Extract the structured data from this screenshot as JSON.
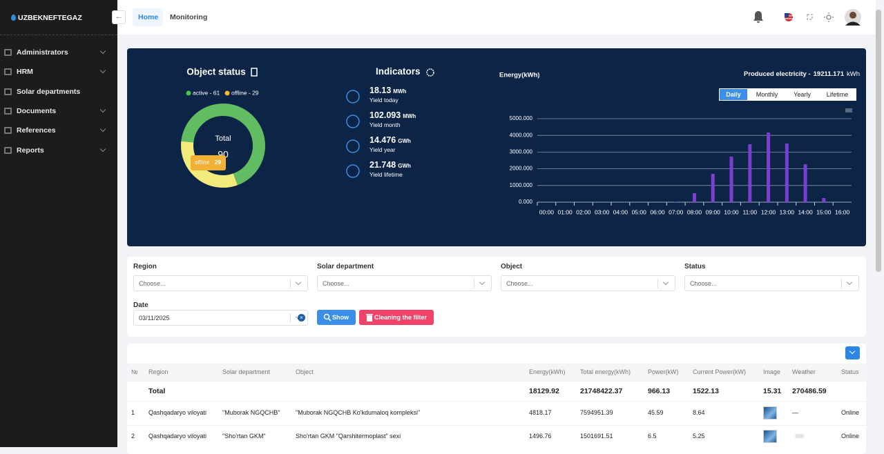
{
  "sidebar": {
    "logo": "UZBEKNEFTEGAZ",
    "menu": [
      "Administrators",
      "HRM",
      "Solar departments",
      "Documents",
      "References",
      "Reports"
    ]
  },
  "header": {
    "tabs": [
      "Home",
      "Monitoring"
    ]
  },
  "indicators": {
    "title": "Indicators",
    "items": [
      {
        "value": 18.13,
        "unit": "MWh",
        "label": "Yield today"
      },
      {
        "value": 102.093,
        "unit": "MWh",
        "label": "Yield month"
      },
      {
        "value": 14.476,
        "unit": "GWh",
        "label": "Yield year"
      },
      {
        "value": 21.748,
        "unit": "GWh",
        "label": "Yield lifetime"
      }
    ]
  },
  "produced": {
    "label": "Produced electricity -",
    "value": 19211.171,
    "unit": "kWh"
  },
  "periods": [
    "Daily",
    "Monthly",
    "Yearly",
    "Lifetime"
  ],
  "chart_data": [
    {
      "type": "donut",
      "title": "Object status",
      "categories": [
        "active",
        "offline"
      ],
      "values": [
        61,
        29
      ],
      "colors": [
        "#62bd62",
        "#f3ea7c"
      ],
      "legend_labels": [
        "active - 61",
        "offline - 29"
      ],
      "center_label": "Total",
      "center_value": 90
    },
    {
      "type": "bar",
      "title": "Energy(kWh)",
      "color": "#7a3fd0",
      "categories": [
        "00:00",
        "01:00",
        "02:00",
        "03:00",
        "04:00",
        "05:00",
        "06:00",
        "07:00",
        "08:00",
        "09:00",
        "10:00",
        "11:00",
        "12:00",
        "13:00",
        "14:00",
        "15:00",
        "16:00"
      ],
      "values": [
        0,
        0,
        0,
        0,
        0,
        0,
        0,
        30,
        540,
        1700,
        2730,
        3470,
        4170,
        3510,
        2270,
        250,
        0
      ],
      "ylim": [
        0,
        5000
      ],
      "yticks": [
        {
          "value": 0,
          "label": "0.000"
        },
        {
          "value": 1000,
          "label": "1000.000"
        },
        {
          "value": 2000,
          "label": "2000.000"
        },
        {
          "value": 3000,
          "label": "3000.000"
        },
        {
          "value": 4000,
          "label": "4000.000"
        },
        {
          "value": 5000,
          "label": "5000.000"
        }
      ],
      "grid": true
    }
  ],
  "filters": {
    "fields": [
      {
        "label": "Region",
        "placeholder": "Choose..."
      },
      {
        "label": "Solar department",
        "placeholder": "Choose..."
      },
      {
        "label": "Object",
        "placeholder": "Choose..."
      },
      {
        "label": "Status",
        "placeholder": "Choose..."
      }
    ],
    "date": {
      "label": "Date",
      "value": "03/11/2025"
    },
    "show": "Show",
    "clear": "Cleaning the filter"
  },
  "table": {
    "headers": [
      "№",
      "Region",
      "Solar department",
      "Object",
      "Energy(kWh)",
      "Total energy(kWh)",
      "Power(kW)",
      "Current Power(kW)",
      "Image",
      "Weather",
      "Status"
    ],
    "total": {
      "label": "Total",
      "values": [
        18129.92,
        21748422.37,
        966.13,
        1522.13,
        15.31,
        270486.59
      ]
    },
    "rows": [
      {
        "no": 1,
        "region": "Qashqadaryo viloyati",
        "department": "\"Muborak NGQCHB\"",
        "object": "\"Muborak NGQCHB Ko'kdumaloq kompleksi\"",
        "energy": 4818.17,
        "total_energy": 7594951.39,
        "power": 45.59,
        "current_power": 8.64,
        "weather": "—",
        "status": "Online"
      },
      {
        "no": 2,
        "region": "Qashqadaryo viloyati",
        "department": "\"Sho'rtan GKM\"",
        "object": "Sho'rtan GKM \"Qarshitermoplast\" sexi",
        "energy": 1496.76,
        "total_energy": 1501691.51,
        "power": 6.5,
        "current_power": 5.25,
        "status": "Online"
      }
    ]
  }
}
